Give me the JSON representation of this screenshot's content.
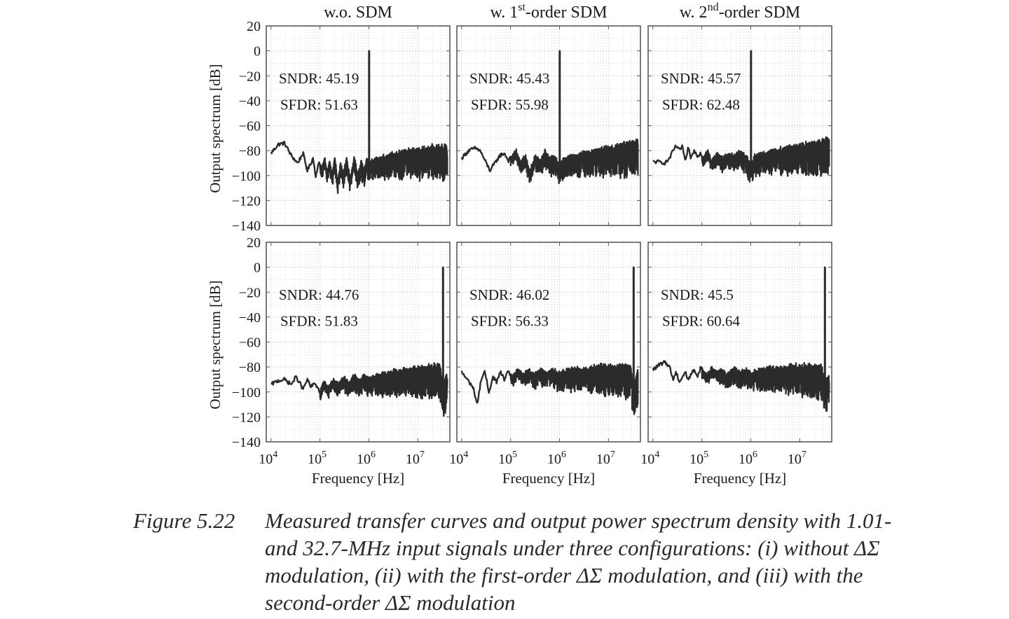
{
  "caption": {
    "number": "Figure 5.22",
    "text": "Measured transfer curves and output power spectrum density with 1.01- and 32.7-MHz input signals under three configurations: (i) without ΔΣ modulation, (ii) with the first-order ΔΣ modulation, and (iii) with the second-order ΔΣ modulation"
  },
  "chart_data": [
    {
      "type": "line",
      "row": 1,
      "col": 1,
      "title_main": "w.o. SDM",
      "title_sup": "",
      "title_post": "",
      "sndr_label": "SNDR: 45.19",
      "sfdr_label": "SFDR: 51.63",
      "xlabel": "",
      "ylabel": "Output spectrum [dB]",
      "xscale": "log",
      "xlim": [
        8000,
        45000000
      ],
      "ylim": [
        -140,
        20
      ],
      "yticks": [
        20,
        0,
        -20,
        -40,
        -60,
        -80,
        -100,
        -120,
        -140
      ],
      "ytick_labels": [
        "20",
        "0",
        "−20",
        "−40",
        "−60",
        "−80",
        "−100",
        "−120",
        "−140"
      ],
      "signal_tone": {
        "freq_hz": 1010000,
        "level_db": 0
      },
      "noise_floor_db": -90,
      "series": [
        {
          "name": "spectrum",
          "x": [
            10000,
            14000,
            19000,
            26000,
            35000,
            45000,
            55000,
            62000,
            72000,
            82000,
            95000,
            110000,
            125000,
            140000,
            160000,
            180000,
            200000,
            230000,
            260000,
            300000,
            350000,
            420000,
            500000,
            600000,
            700000,
            800000,
            900000,
            1010000,
            1100000,
            1400000,
            2000000,
            3000000,
            5000000,
            8000000,
            12000000,
            20000000,
            32000000,
            40000000
          ],
          "y": [
            -82,
            -75,
            -74,
            -84,
            -90,
            -82,
            -96,
            -92,
            -86,
            -100,
            -90,
            -94,
            -86,
            -98,
            -88,
            -100,
            -84,
            -105,
            -90,
            -98,
            -86,
            -102,
            -84,
            -100,
            -88,
            -96,
            -86,
            0,
            -88,
            -86,
            -84,
            -82,
            -80,
            -78,
            -78,
            -76,
            -76,
            -76
          ]
        }
      ]
    },
    {
      "type": "line",
      "row": 1,
      "col": 2,
      "title_main": "w. 1",
      "title_sup": "st",
      "title_post": "-order SDM",
      "sndr_label": "SNDR: 45.43",
      "sfdr_label": "SFDR: 55.98",
      "xlabel": "",
      "ylabel": "",
      "xscale": "log",
      "xlim": [
        8000,
        45000000
      ],
      "ylim": [
        -140,
        20
      ],
      "signal_tone": {
        "freq_hz": 1010000,
        "level_db": 0
      },
      "noise_floor_db": -92,
      "series": [
        {
          "name": "spectrum",
          "x": [
            10000,
            14000,
            19000,
            24000,
            30000,
            38000,
            48000,
            60000,
            75000,
            90000,
            110000,
            130000,
            160000,
            200000,
            250000,
            320000,
            400000,
            500000,
            650000,
            800000,
            1010000,
            1200000,
            1600000,
            2500000,
            4000000,
            7000000,
            12000000,
            20000000,
            32000000,
            40000000
          ],
          "y": [
            -86,
            -80,
            -78,
            -80,
            -88,
            -96,
            -90,
            -84,
            -82,
            -88,
            -84,
            -80,
            -90,
            -84,
            -96,
            -84,
            -88,
            -80,
            -86,
            -84,
            0,
            -86,
            -84,
            -82,
            -80,
            -78,
            -76,
            -74,
            -72,
            -72
          ]
        }
      ]
    },
    {
      "type": "line",
      "row": 1,
      "col": 3,
      "title_main": "w. 2",
      "title_sup": "nd",
      "title_post": "-order SDM",
      "sndr_label": "SNDR: 45.57",
      "sfdr_label": "SFDR: 62.48",
      "xlabel": "",
      "ylabel": "",
      "xscale": "log",
      "xlim": [
        8000,
        45000000
      ],
      "ylim": [
        -140,
        20
      ],
      "signal_tone": {
        "freq_hz": 1010000,
        "level_db": 0
      },
      "noise_floor_db": -92,
      "series": [
        {
          "name": "spectrum",
          "x": [
            10000,
            14000,
            18000,
            22000,
            26000,
            30000,
            35000,
            40000,
            46000,
            52000,
            60000,
            70000,
            80000,
            95000,
            110000,
            130000,
            160000,
            200000,
            260000,
            340000,
            450000,
            600000,
            800000,
            1010000,
            1200000,
            1600000,
            2500000,
            4000000,
            7000000,
            12000000,
            20000000,
            32000000,
            40000000
          ],
          "y": [
            -89,
            -89,
            -90,
            -86,
            -80,
            -76,
            -80,
            -76,
            -90,
            -78,
            -86,
            -80,
            -84,
            -82,
            -86,
            -80,
            -88,
            -82,
            -86,
            -82,
            -84,
            -80,
            -84,
            0,
            -84,
            -82,
            -80,
            -78,
            -76,
            -74,
            -72,
            -70,
            -70
          ]
        }
      ]
    },
    {
      "type": "line",
      "row": 2,
      "col": 1,
      "title_main": "",
      "title_sup": "",
      "title_post": "",
      "sndr_label": "SNDR: 44.76",
      "sfdr_label": "SFDR: 51.83",
      "xlabel": "Frequency [Hz]",
      "ylabel": "Output spectrum [dB]",
      "xscale": "log",
      "xlim": [
        8000,
        45000000
      ],
      "ylim": [
        -140,
        20
      ],
      "xticks": [
        10000,
        100000,
        1000000,
        10000000
      ],
      "xtick_base": "10",
      "xtick_exps": [
        "4",
        "5",
        "6",
        "7"
      ],
      "yticks": [
        20,
        0,
        -20,
        -40,
        -60,
        -80,
        -100,
        -120,
        -140
      ],
      "ytick_labels": [
        "20",
        "0",
        "−20",
        "−40",
        "−60",
        "−80",
        "−100",
        "−120",
        "−140"
      ],
      "signal_tone": {
        "freq_hz": 32700000,
        "level_db": 0
      },
      "noise_floor_db": -92,
      "series": [
        {
          "name": "spectrum",
          "x": [
            10000,
            14000,
            19000,
            26000,
            32000,
            38000,
            45000,
            55000,
            65000,
            80000,
            100000,
            120000,
            150000,
            190000,
            240000,
            300000,
            400000,
            500000,
            650000,
            800000,
            1000000,
            1500000,
            2500000,
            4000000,
            7000000,
            12000000,
            20000000,
            28000000,
            32700000,
            40000000
          ],
          "y": [
            -94,
            -91,
            -90,
            -94,
            -88,
            -92,
            -98,
            -90,
            -96,
            -93,
            -100,
            -92,
            -96,
            -90,
            -94,
            -88,
            -92,
            -86,
            -90,
            -86,
            -88,
            -86,
            -84,
            -82,
            -80,
            -80,
            -78,
            -78,
            0,
            -86
          ]
        }
      ]
    },
    {
      "type": "line",
      "row": 2,
      "col": 2,
      "title_main": "",
      "title_sup": "",
      "title_post": "",
      "sndr_label": "SNDR: 46.02",
      "sfdr_label": "SFDR: 56.33",
      "xlabel": "Frequency [Hz]",
      "ylabel": "",
      "xscale": "log",
      "xlim": [
        8000,
        45000000
      ],
      "ylim": [
        -140,
        20
      ],
      "xticks": [
        10000,
        100000,
        1000000,
        10000000
      ],
      "xtick_base": "10",
      "xtick_exps": [
        "4",
        "5",
        "6",
        "7"
      ],
      "signal_tone": {
        "freq_hz": 32700000,
        "level_db": 0
      },
      "noise_floor_db": -92,
      "series": [
        {
          "name": "spectrum",
          "x": [
            10000,
            13000,
            17000,
            21000,
            25000,
            30000,
            36000,
            44000,
            52000,
            62000,
            75000,
            90000,
            110000,
            140000,
            180000,
            230000,
            300000,
            400000,
            550000,
            750000,
            1000000,
            1500000,
            2500000,
            4000000,
            7000000,
            12000000,
            20000000,
            28000000,
            32700000,
            40000000
          ],
          "y": [
            -84,
            -90,
            -96,
            -110,
            -90,
            -84,
            -100,
            -88,
            -92,
            -84,
            -90,
            -84,
            -88,
            -82,
            -86,
            -82,
            -86,
            -82,
            -84,
            -82,
            -84,
            -82,
            -80,
            -80,
            -78,
            -78,
            -78,
            -78,
            0,
            -82
          ]
        }
      ]
    },
    {
      "type": "line",
      "row": 2,
      "col": 3,
      "title_main": "",
      "title_sup": "",
      "title_post": "",
      "sndr_label": "SNDR: 45.5",
      "sfdr_label": "SFDR: 60.64",
      "xlabel": "Frequency [Hz]",
      "ylabel": "",
      "xscale": "log",
      "xlim": [
        8000,
        45000000
      ],
      "ylim": [
        -140,
        20
      ],
      "xticks": [
        10000,
        100000,
        1000000,
        10000000
      ],
      "xtick_base": "10",
      "xtick_exps": [
        "4",
        "5",
        "6",
        "7"
      ],
      "signal_tone": {
        "freq_hz": 32700000,
        "level_db": 0
      },
      "noise_floor_db": -90,
      "series": [
        {
          "name": "spectrum",
          "x": [
            10000,
            14000,
            18000,
            22000,
            26000,
            30000,
            35000,
            40000,
            46000,
            52000,
            60000,
            70000,
            82000,
            95000,
            110000,
            130000,
            160000,
            200000,
            260000,
            340000,
            450000,
            600000,
            800000,
            1000000,
            1500000,
            2500000,
            4000000,
            7000000,
            12000000,
            20000000,
            28000000,
            32700000,
            40000000
          ],
          "y": [
            -82,
            -78,
            -76,
            -80,
            -90,
            -84,
            -92,
            -88,
            -84,
            -90,
            -86,
            -82,
            -88,
            -80,
            -84,
            -86,
            -80,
            -84,
            -82,
            -86,
            -80,
            -84,
            -82,
            -84,
            -82,
            -80,
            -80,
            -78,
            -78,
            -78,
            -78,
            0,
            -84
          ]
        }
      ]
    }
  ]
}
